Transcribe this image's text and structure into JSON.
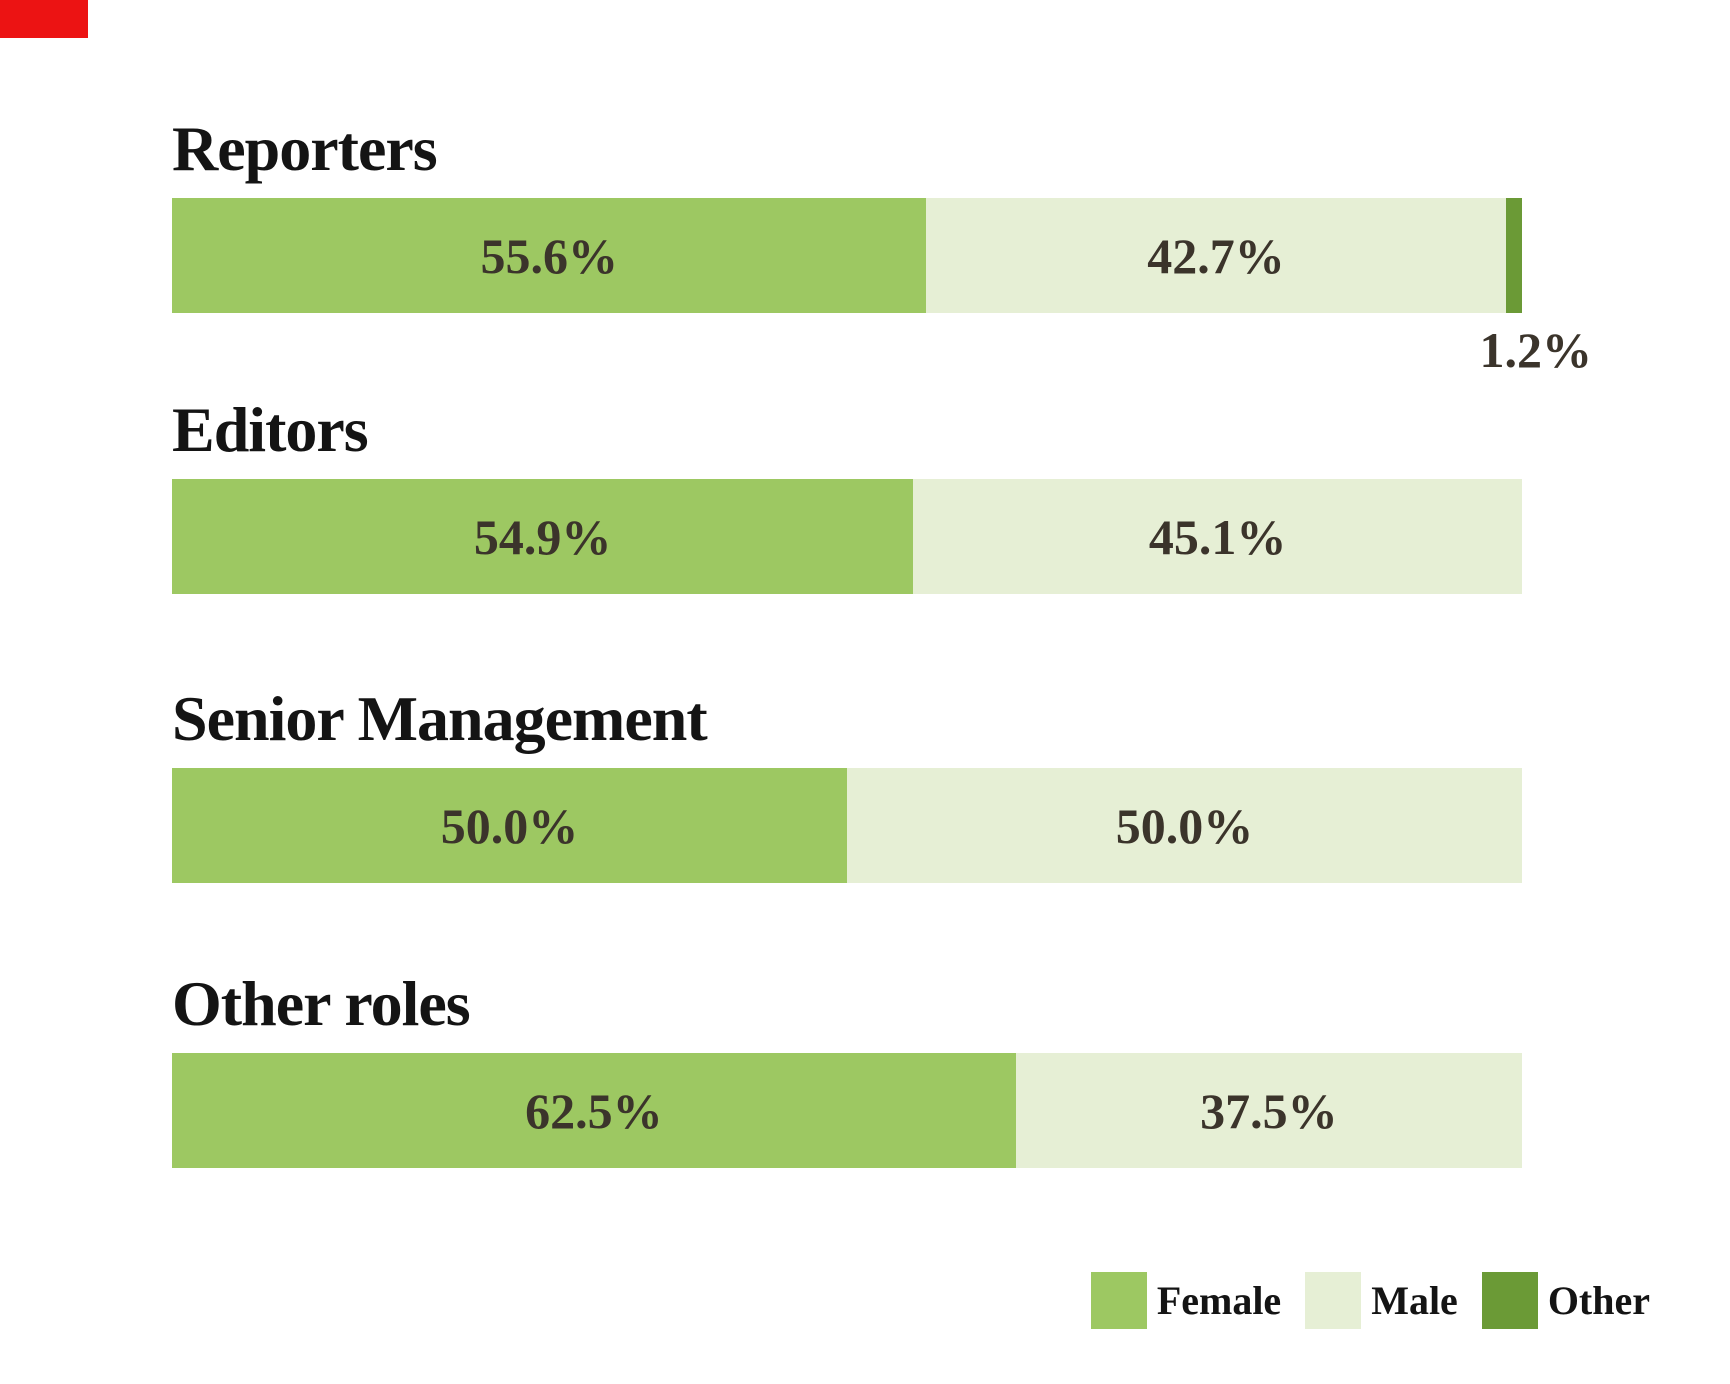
{
  "decorations": {
    "marker_color": "#ec1313"
  },
  "chart_data": {
    "type": "bar",
    "stacked": true,
    "orientation": "horizontal",
    "unit": "%",
    "grid": false,
    "xlim": [
      0,
      100
    ],
    "legend_position": "bottom-right",
    "categories": [
      "Reporters",
      "Editors",
      "Senior Management",
      "Other roles"
    ],
    "series": [
      {
        "name": "Female",
        "color": "#9dc862",
        "values": [
          55.6,
          54.9,
          50.0,
          62.5
        ]
      },
      {
        "name": "Male",
        "color": "#e6efd5",
        "values": [
          42.7,
          45.1,
          50.0,
          37.5
        ]
      },
      {
        "name": "Other",
        "color": "#6b9a36",
        "values": [
          1.2,
          0,
          0,
          0
        ]
      }
    ],
    "value_labels": [
      [
        "55.6%",
        "42.7%",
        "1.2%"
      ],
      [
        "54.9%",
        "45.1%"
      ],
      [
        "50.0%",
        "50.0%"
      ],
      [
        "62.5%",
        "37.5%"
      ]
    ]
  },
  "legend": {
    "items": [
      {
        "label": "Female",
        "color": "#9dc862"
      },
      {
        "label": "Male",
        "color": "#e6efd5"
      },
      {
        "label": "Other",
        "color": "#6b9a36"
      }
    ]
  },
  "text_colors": {
    "category_title": "#141414",
    "value_label": "#3b342b"
  }
}
